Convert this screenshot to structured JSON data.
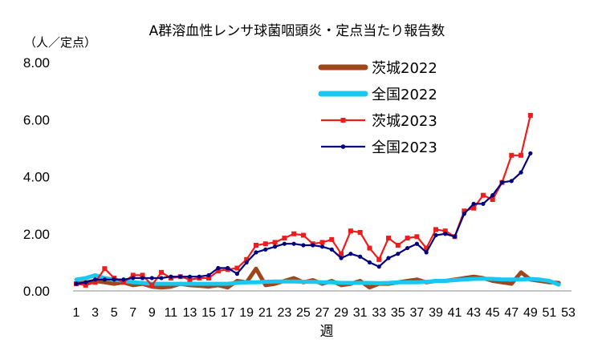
{
  "chart_data": {
    "type": "line",
    "title": "A群溶血性レンサ球菌咽頭炎・定点当たり報告数",
    "ylabel": "（人／定点）",
    "xlabel": "週",
    "ylim": [
      0,
      8
    ],
    "yticks": [
      "0.00",
      "2.00",
      "4.00",
      "6.00",
      "8.00"
    ],
    "xlim": [
      1,
      53
    ],
    "xticks": [
      1,
      3,
      5,
      7,
      9,
      11,
      13,
      15,
      17,
      19,
      21,
      23,
      25,
      27,
      29,
      31,
      33,
      35,
      37,
      39,
      41,
      43,
      45,
      47,
      49,
      51,
      53
    ],
    "legend_position": "top-right",
    "series": [
      {
        "name": "茨城2022",
        "color": "#a0461c",
        "style": "thick",
        "x": [
          1,
          2,
          3,
          4,
          5,
          6,
          7,
          8,
          9,
          10,
          11,
          12,
          13,
          14,
          15,
          16,
          17,
          18,
          19,
          20,
          21,
          22,
          23,
          24,
          25,
          26,
          27,
          28,
          29,
          30,
          31,
          32,
          33,
          34,
          35,
          36,
          37,
          38,
          39,
          40,
          41,
          42,
          43,
          44,
          45,
          46,
          47,
          48,
          49,
          50,
          51,
          52
        ],
        "values": [
          0.25,
          0.3,
          0.35,
          0.3,
          0.25,
          0.3,
          0.2,
          0.25,
          0.15,
          0.12,
          0.15,
          0.25,
          0.2,
          0.18,
          0.15,
          0.2,
          0.12,
          0.35,
          0.3,
          0.78,
          0.2,
          0.25,
          0.35,
          0.45,
          0.3,
          0.38,
          0.25,
          0.35,
          0.2,
          0.25,
          0.35,
          0.12,
          0.25,
          0.25,
          0.3,
          0.35,
          0.4,
          0.3,
          0.35,
          0.35,
          0.4,
          0.45,
          0.5,
          0.45,
          0.35,
          0.3,
          0.25,
          0.65,
          0.4,
          0.35,
          0.3,
          0.28
        ]
      },
      {
        "name": "全国2022",
        "color": "#18c8f0",
        "style": "thick",
        "x": [
          1,
          2,
          3,
          4,
          5,
          6,
          7,
          8,
          9,
          10,
          11,
          12,
          13,
          14,
          15,
          16,
          17,
          18,
          19,
          20,
          21,
          22,
          23,
          24,
          25,
          26,
          27,
          28,
          29,
          30,
          31,
          32,
          33,
          34,
          35,
          36,
          37,
          38,
          39,
          40,
          41,
          42,
          43,
          44,
          45,
          46,
          47,
          48,
          49,
          50,
          51,
          52
        ],
        "values": [
          0.4,
          0.45,
          0.55,
          0.45,
          0.4,
          0.35,
          0.3,
          0.28,
          0.25,
          0.25,
          0.25,
          0.25,
          0.25,
          0.25,
          0.25,
          0.25,
          0.25,
          0.28,
          0.3,
          0.3,
          0.32,
          0.33,
          0.33,
          0.33,
          0.32,
          0.32,
          0.3,
          0.3,
          0.28,
          0.28,
          0.28,
          0.28,
          0.27,
          0.28,
          0.3,
          0.3,
          0.3,
          0.32,
          0.35,
          0.35,
          0.38,
          0.4,
          0.42,
          0.43,
          0.42,
          0.4,
          0.4,
          0.4,
          0.42,
          0.4,
          0.35,
          0.22
        ]
      },
      {
        "name": "茨城2023",
        "color": "#ee1c1c",
        "style": "markers-square",
        "x": [
          1,
          2,
          3,
          4,
          5,
          6,
          7,
          8,
          9,
          10,
          11,
          12,
          13,
          14,
          15,
          16,
          17,
          18,
          19,
          20,
          21,
          22,
          23,
          24,
          25,
          26,
          27,
          28,
          29,
          30,
          31,
          32,
          33,
          34,
          35,
          36,
          37,
          38,
          39,
          40,
          41,
          42,
          43,
          44,
          45,
          46,
          47,
          48,
          49
        ],
        "values": [
          0.25,
          0.2,
          0.3,
          0.78,
          0.45,
          0.3,
          0.55,
          0.55,
          0.2,
          0.65,
          0.45,
          0.5,
          0.4,
          0.45,
          0.45,
          0.7,
          0.75,
          0.8,
          1.1,
          1.6,
          1.65,
          1.7,
          1.85,
          2.0,
          1.95,
          1.65,
          1.7,
          1.8,
          1.3,
          2.1,
          2.05,
          1.5,
          1.1,
          1.85,
          1.6,
          1.85,
          1.9,
          1.5,
          2.15,
          2.1,
          1.9,
          2.8,
          2.9,
          3.35,
          3.2,
          3.8,
          4.75,
          4.75,
          6.15
        ]
      },
      {
        "name": "全国2023",
        "color": "#000080",
        "style": "markers-circle",
        "x": [
          1,
          2,
          3,
          4,
          5,
          6,
          7,
          8,
          9,
          10,
          11,
          12,
          13,
          14,
          15,
          16,
          17,
          18,
          19,
          20,
          21,
          22,
          23,
          24,
          25,
          26,
          27,
          28,
          29,
          30,
          31,
          32,
          33,
          34,
          35,
          36,
          37,
          38,
          39,
          40,
          41,
          42,
          43,
          44,
          45,
          46,
          47,
          48,
          49
        ],
        "values": [
          0.25,
          0.3,
          0.4,
          0.4,
          0.4,
          0.4,
          0.45,
          0.45,
          0.45,
          0.45,
          0.5,
          0.5,
          0.5,
          0.5,
          0.55,
          0.8,
          0.8,
          0.6,
          1.0,
          1.35,
          1.45,
          1.55,
          1.65,
          1.65,
          1.6,
          1.6,
          1.55,
          1.45,
          1.15,
          1.3,
          1.2,
          1.0,
          0.85,
          1.15,
          1.3,
          1.5,
          1.65,
          1.35,
          1.95,
          2.0,
          1.9,
          2.7,
          3.05,
          3.05,
          3.35,
          3.8,
          3.85,
          4.15,
          4.82
        ]
      }
    ]
  }
}
